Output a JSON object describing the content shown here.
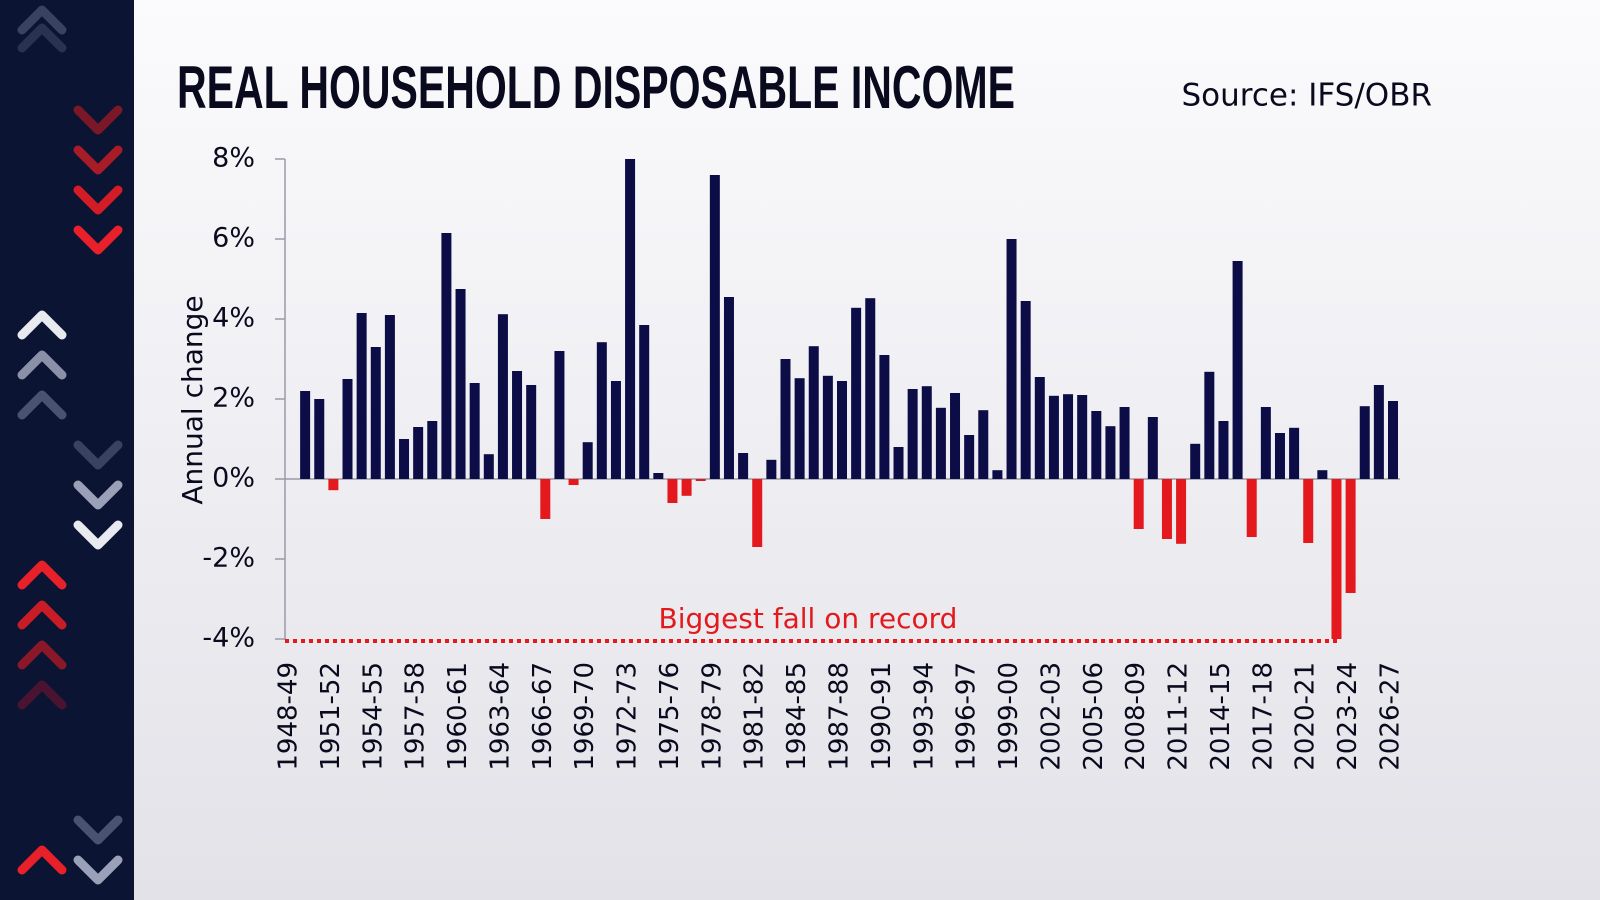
{
  "chart_data": {
    "type": "bar",
    "title": "REAL HOUSEHOLD DISPOSABLE INCOME",
    "source": "Source: IFS/OBR",
    "y_label": "Annual change",
    "color": "#0c0c47",
    "negative_color": "#e3191e",
    "categories": [
      "1948-49",
      null,
      null,
      "1951-52",
      null,
      null,
      "1954-55",
      null,
      null,
      "1957-58",
      null,
      null,
      "1960-61",
      null,
      null,
      "1963-64",
      null,
      null,
      "1966-67",
      null,
      null,
      "1969-70",
      null,
      null,
      "1972-73",
      null,
      null,
      "1975-76",
      null,
      null,
      "1978-79",
      null,
      null,
      "1981-82",
      null,
      null,
      "1984-85",
      null,
      null,
      "1987-88",
      null,
      null,
      "1990-91",
      null,
      null,
      "1993-94",
      null,
      null,
      "1996-97",
      null,
      null,
      "1999-00",
      null,
      null,
      "2002-03",
      null,
      null,
      "2005-06",
      null,
      null,
      "2008-09",
      null,
      null,
      "2011-12",
      null,
      null,
      "2014-15",
      null,
      null,
      "2017-18",
      null,
      null,
      "2020-21",
      null,
      null,
      "2023-24",
      null,
      null,
      "2026-27"
    ],
    "values": [
      null,
      2.2,
      2.0,
      -0.28,
      2.5,
      4.15,
      3.3,
      4.1,
      1.0,
      1.3,
      1.45,
      6.15,
      4.75,
      2.4,
      0.62,
      4.12,
      2.7,
      2.35,
      -1.0,
      3.2,
      -0.15,
      0.92,
      3.42,
      2.45,
      8.0,
      3.85,
      0.15,
      -0.6,
      -0.42,
      -0.05,
      7.6,
      4.55,
      0.65,
      -1.7,
      0.48,
      3.0,
      2.52,
      3.32,
      2.58,
      2.45,
      4.28,
      4.52,
      3.1,
      0.8,
      2.25,
      2.32,
      1.78,
      2.15,
      1.1,
      1.72,
      0.22,
      6.0,
      4.45,
      2.55,
      2.08,
      2.12,
      2.1,
      1.7,
      1.32,
      1.8,
      -1.25,
      1.55,
      -1.5,
      -1.62,
      0.88,
      2.68,
      1.45,
      5.45,
      -1.45,
      1.8,
      1.15,
      1.28,
      -1.6,
      0.22,
      -4.0,
      -2.85,
      1.82,
      2.35,
      1.95
    ],
    "ylim": [
      -4,
      8
    ],
    "yticks": [
      {
        "value": -4,
        "label": "-4%"
      },
      {
        "value": -2,
        "label": "-2%"
      },
      {
        "value": 0,
        "label": "0%"
      },
      {
        "value": 2,
        "label": "2%"
      },
      {
        "value": 4,
        "label": "4%"
      },
      {
        "value": 6,
        "label": "6%"
      },
      {
        "value": 8,
        "label": "8%"
      }
    ],
    "grid": false,
    "annotation": {
      "text": "Biggest fall on record",
      "value": -4
    }
  }
}
